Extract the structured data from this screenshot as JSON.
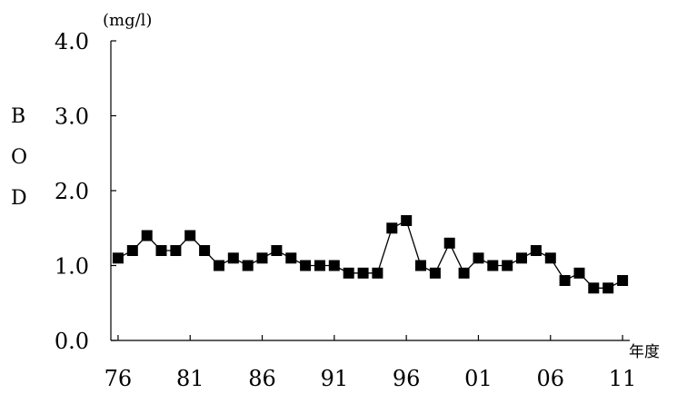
{
  "chart_data": {
    "type": "line",
    "y_unit": "(mg/l)",
    "ylabel_chars": [
      "B",
      "O",
      "D"
    ],
    "xlabel": "年度",
    "ylim": [
      0,
      4
    ],
    "yticks": [
      "0.0",
      "1.0",
      "2.0",
      "3.0",
      "4.0"
    ],
    "xlim": [
      1975.5,
      2011.5
    ],
    "xtick_labels": [
      "76",
      "81",
      "86",
      "91",
      "96",
      "01",
      "06",
      "11"
    ],
    "xtick_values": [
      1976,
      1981,
      1986,
      1991,
      1996,
      2001,
      2006,
      2011
    ],
    "grid": false,
    "marker": "square",
    "series": [
      {
        "x": [
          1976,
          1977,
          1978,
          1979,
          1980,
          1981,
          1982,
          1983,
          1984,
          1985,
          1986,
          1987,
          1988,
          1989,
          1990,
          1991,
          1992,
          1993,
          1994,
          1995,
          1996,
          1997,
          1998,
          1999,
          2000,
          2001,
          2002,
          2003,
          2004,
          2005,
          2006,
          2007,
          2008,
          2009,
          2010,
          2011
        ],
        "values": [
          1.1,
          1.2,
          1.4,
          1.2,
          1.2,
          1.4,
          1.2,
          1.0,
          1.1,
          1.0,
          1.1,
          1.2,
          1.1,
          1.0,
          1.0,
          1.0,
          0.9,
          0.9,
          0.9,
          1.5,
          1.6,
          1.0,
          0.9,
          1.3,
          0.9,
          1.1,
          1.0,
          1.0,
          1.1,
          1.2,
          1.1,
          0.8,
          0.9,
          0.7,
          0.7,
          0.8
        ]
      }
    ]
  }
}
